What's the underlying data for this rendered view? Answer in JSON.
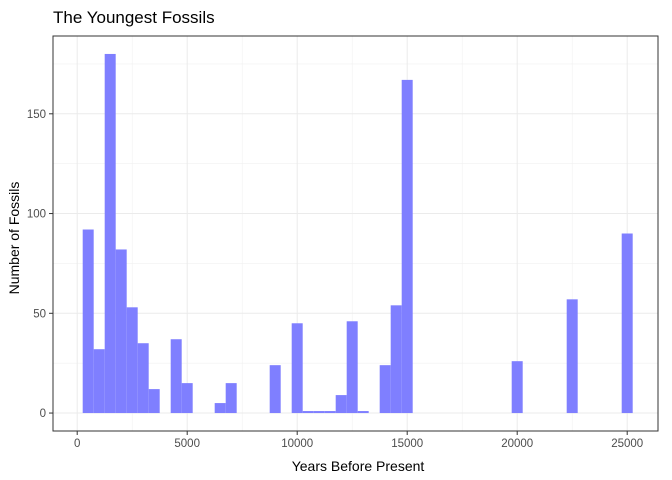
{
  "chart_data": {
    "type": "histogram",
    "title": "The Youngest Fossils",
    "xlabel": "Years Before Present",
    "ylabel": "Number of Fossils",
    "xlim": [
      -1100,
      26400
    ],
    "ylim": [
      -9,
      189
    ],
    "xticks": [
      0,
      5000,
      10000,
      15000,
      20000,
      25000
    ],
    "yticks": [
      0,
      50,
      100,
      150
    ],
    "x_tick_labels": [
      "0",
      "5000",
      "10000",
      "15000",
      "20000",
      "25000"
    ],
    "y_tick_labels": [
      "0",
      "50",
      "100",
      "150"
    ],
    "grid": true,
    "bar_color": "#7f7fff",
    "bin_width": 500,
    "bins": [
      {
        "x0": 250,
        "x1": 750,
        "count": 92
      },
      {
        "x0": 750,
        "x1": 1250,
        "count": 32
      },
      {
        "x0": 1250,
        "x1": 1750,
        "count": 180
      },
      {
        "x0": 1750,
        "x1": 2250,
        "count": 82
      },
      {
        "x0": 2250,
        "x1": 2750,
        "count": 53
      },
      {
        "x0": 2750,
        "x1": 3250,
        "count": 35
      },
      {
        "x0": 3250,
        "x1": 3750,
        "count": 12
      },
      {
        "x0": 3750,
        "x1": 4250,
        "count": 0
      },
      {
        "x0": 4250,
        "x1": 4750,
        "count": 37
      },
      {
        "x0": 4750,
        "x1": 5250,
        "count": 15
      },
      {
        "x0": 5250,
        "x1": 5750,
        "count": 0
      },
      {
        "x0": 5750,
        "x1": 6250,
        "count": 0
      },
      {
        "x0": 6250,
        "x1": 6750,
        "count": 5
      },
      {
        "x0": 6750,
        "x1": 7250,
        "count": 15
      },
      {
        "x0": 7250,
        "x1": 7750,
        "count": 0
      },
      {
        "x0": 7750,
        "x1": 8250,
        "count": 0
      },
      {
        "x0": 8250,
        "x1": 8750,
        "count": 0
      },
      {
        "x0": 8750,
        "x1": 9250,
        "count": 24
      },
      {
        "x0": 9250,
        "x1": 9750,
        "count": 0
      },
      {
        "x0": 9750,
        "x1": 10250,
        "count": 45
      },
      {
        "x0": 10250,
        "x1": 10750,
        "count": 1
      },
      {
        "x0": 10750,
        "x1": 11250,
        "count": 1
      },
      {
        "x0": 11250,
        "x1": 11750,
        "count": 1
      },
      {
        "x0": 11750,
        "x1": 12250,
        "count": 9
      },
      {
        "x0": 12250,
        "x1": 12750,
        "count": 46
      },
      {
        "x0": 12750,
        "x1": 13250,
        "count": 1
      },
      {
        "x0": 13250,
        "x1": 13750,
        "count": 0
      },
      {
        "x0": 13750,
        "x1": 14250,
        "count": 24
      },
      {
        "x0": 14250,
        "x1": 14750,
        "count": 54
      },
      {
        "x0": 14750,
        "x1": 15250,
        "count": 167
      },
      {
        "x0": 19750,
        "x1": 20250,
        "count": 26
      },
      {
        "x0": 22250,
        "x1": 22750,
        "count": 57
      },
      {
        "x0": 24750,
        "x1": 25250,
        "count": 90
      }
    ]
  }
}
